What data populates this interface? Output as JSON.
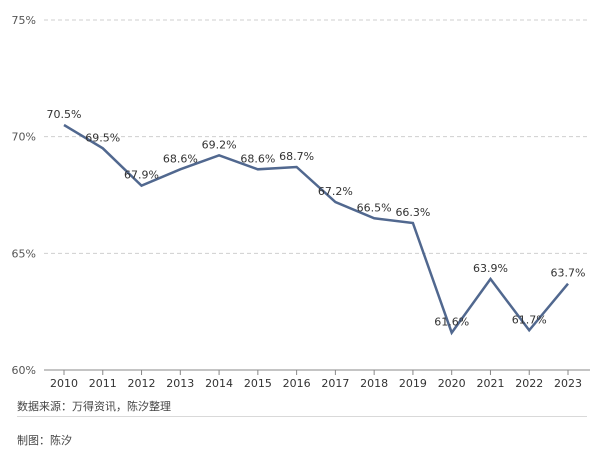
{
  "chart_data": {
    "type": "line",
    "title": "",
    "xlabel": "",
    "ylabel": "",
    "categories": [
      "2010",
      "2011",
      "2012",
      "2013",
      "2014",
      "2015",
      "2016",
      "2017",
      "2018",
      "2019",
      "2020",
      "2021",
      "2022",
      "2023"
    ],
    "series": [
      {
        "name": "",
        "values": [
          70.5,
          69.5,
          67.9,
          68.6,
          69.2,
          68.6,
          68.7,
          67.2,
          66.5,
          66.3,
          61.6,
          63.9,
          61.7,
          63.7
        ],
        "labels": [
          "70.5%",
          "69.5%",
          "67.9%",
          "68.6%",
          "69.2%",
          "68.6%",
          "68.7%",
          "67.2%",
          "66.5%",
          "66.3%",
          "61.6%",
          "63.9%",
          "61.7%",
          "63.7%"
        ]
      }
    ],
    "ylim": [
      60,
      75
    ],
    "yticks": [
      60,
      65,
      70,
      75
    ],
    "ytick_labels": [
      "60%",
      "65%",
      "70%",
      "75%"
    ],
    "grid": true,
    "color": "#51688f"
  },
  "footer": {
    "source": "数据来源：万得资讯，陈汐整理",
    "maker": "制图：陈汐"
  }
}
